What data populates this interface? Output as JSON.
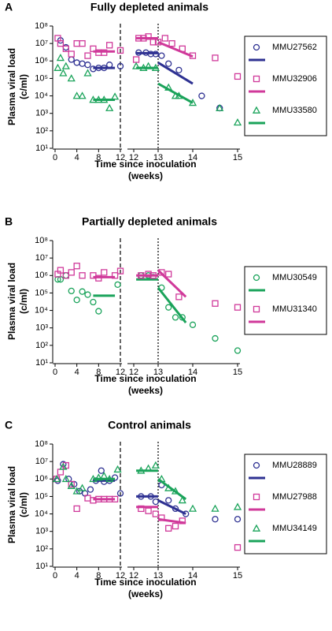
{
  "chart_data": [
    {
      "type": "scatter",
      "panel_label": "A",
      "title": "Fully depleted animals",
      "ylabel": [
        "Plasma viral load",
        "(c/ml)"
      ],
      "xlabel": [
        "Time since inoculation",
        "(weeks)"
      ],
      "log_scale": true,
      "ylim": [
        10,
        100000000
      ],
      "yticks": [
        {
          "value": 10,
          "label": "10¹"
        },
        {
          "value": 100,
          "label": "10²"
        },
        {
          "value": 1000,
          "label": "10³"
        },
        {
          "value": 10000,
          "label": "10⁴"
        },
        {
          "value": 100000,
          "label": "10⁵"
        },
        {
          "value": 1000000,
          "label": "10⁶"
        },
        {
          "value": 10000000,
          "label": "10⁷"
        },
        {
          "value": 100000000,
          "label": "10⁸"
        }
      ],
      "xlim": [
        0,
        12
      ],
      "xticks": [
        0,
        4,
        8,
        12
      ],
      "x2lim": [
        12,
        15
      ],
      "x2ticks": [
        12,
        13,
        14,
        15
      ],
      "vlines": [
        {
          "x": 12,
          "axis": "x",
          "style": "dashed"
        },
        {
          "x": 13,
          "axis": "x2",
          "style": "dotted"
        }
      ],
      "series": [
        {
          "name": "MMU27562",
          "color": "#2e3192",
          "marker": "circle",
          "x": [
            1,
            2,
            3,
            4,
            5,
            6,
            7,
            8,
            9,
            10,
            12,
            12.2,
            12.5,
            12.7,
            12.9,
            13.1,
            13.3,
            13.6,
            14.2,
            14.6
          ],
          "values": [
            15000000,
            6000000,
            1200000,
            800000,
            700000,
            600000,
            350000,
            400000,
            400000,
            600000,
            500000,
            3000000,
            3000000,
            2500000,
            2500000,
            2000000,
            700000,
            300000,
            10000,
            2000
          ],
          "fits": [
            {
              "x": [
                7,
                11
              ],
              "values": [
                400000,
                400000
              ]
            },
            {
              "x": [
                12.1,
                13
              ],
              "values": [
                2800000,
                2800000
              ]
            },
            {
              "x": [
                13,
                14
              ],
              "values": [
                800000,
                50000
              ]
            }
          ]
        },
        {
          "name": "MMU32906",
          "color": "#d0399a",
          "marker": "square",
          "x": [
            0.5,
            1,
            2,
            3,
            4,
            5,
            6,
            7,
            8,
            9,
            10,
            12,
            12.1,
            12.2,
            12.4,
            12.6,
            12.8,
            13,
            13.2,
            13.4,
            13.7,
            14,
            14.5,
            15
          ],
          "values": [
            20000000,
            10000000,
            5000000,
            2500000,
            10000000,
            10000000,
            2000000,
            5000000,
            3000000,
            3000000,
            8000000,
            4000000,
            1200000,
            20000000,
            20000000,
            25000000,
            12000000,
            12000000,
            20000000,
            10000000,
            5000000,
            2000000,
            1500000,
            130000
          ],
          "fits": [
            {
              "x": [
                7,
                11
              ],
              "values": [
                3500000,
                3500000
              ]
            },
            {
              "x": [
                12.1,
                13
              ],
              "values": [
                20000000,
                20000000
              ]
            },
            {
              "x": [
                13,
                14
              ],
              "values": [
                12000000,
                1800000
              ]
            }
          ]
        },
        {
          "name": "MMU33580",
          "color": "#1aa35a",
          "marker": "triangle",
          "x": [
            0.5,
            1,
            1.5,
            2,
            3,
            4,
            5,
            6,
            7,
            8,
            9,
            10,
            11,
            12.1,
            12.4,
            12.6,
            12.9,
            13.3,
            13.5,
            13.6,
            14,
            14.6,
            15
          ],
          "values": [
            400000,
            1500000,
            200000,
            500000,
            100000,
            10000,
            10000,
            200000,
            6000,
            6000,
            6000,
            2000,
            9000,
            500000,
            400000,
            500000,
            400000,
            30000,
            10000,
            10000,
            4000,
            2000,
            300
          ],
          "fits": [
            {
              "x": [
                7,
                11
              ],
              "values": [
                6000,
                6000
              ]
            },
            {
              "x": [
                12.1,
                13
              ],
              "values": [
                400000,
                400000
              ]
            },
            {
              "x": [
                13,
                14
              ],
              "values": [
                50000,
                4000
              ]
            }
          ]
        }
      ]
    },
    {
      "type": "scatter",
      "panel_label": "B",
      "title": "Partially depleted animals",
      "ylabel": [
        "Plasma viral load",
        "(c/ml)"
      ],
      "xlabel": [
        "Time since inoculation",
        "(weeks)"
      ],
      "log_scale": true,
      "ylim": [
        10,
        100000000
      ],
      "yticks": [
        {
          "value": 10,
          "label": "10¹"
        },
        {
          "value": 100,
          "label": "10²"
        },
        {
          "value": 1000,
          "label": "10³"
        },
        {
          "value": 10000,
          "label": "10⁴"
        },
        {
          "value": 100000,
          "label": "10⁵"
        },
        {
          "value": 1000000,
          "label": "10⁶"
        },
        {
          "value": 10000000,
          "label": "10⁷"
        },
        {
          "value": 100000000,
          "label": "10⁸"
        }
      ],
      "xlim": [
        0,
        12
      ],
      "xticks": [
        0,
        4,
        8,
        12
      ],
      "x2lim": [
        12,
        15
      ],
      "x2ticks": [
        12,
        13,
        14,
        15
      ],
      "vlines": [
        {
          "x": 12,
          "axis": "x",
          "style": "dashed"
        },
        {
          "x": 13,
          "axis": "x2",
          "style": "dotted"
        }
      ],
      "series": [
        {
          "name": "MMU30549",
          "color": "#1aa35a",
          "marker": "circle",
          "x": [
            0.5,
            1,
            2,
            3,
            4,
            5,
            6,
            7,
            8,
            11.5,
            12.3,
            12.6,
            12.8,
            13.1,
            13.3,
            13.5,
            13.7,
            14,
            14.5,
            15
          ],
          "values": [
            600000,
            600000,
            1000000,
            130000,
            40000,
            120000,
            80000,
            30000,
            9000,
            300000,
            1000000,
            1000000,
            800000,
            200000,
            15000,
            4000,
            4000,
            1500,
            250,
            50
          ],
          "fits": [
            {
              "x": [
                7,
                11
              ],
              "values": [
                70000,
                70000
              ]
            },
            {
              "x": [
                12.1,
                13
              ],
              "values": [
                600000,
                600000
              ]
            },
            {
              "x": [
                13,
                13.8
              ],
              "values": [
                200000,
                2000
              ]
            }
          ]
        },
        {
          "name": "MMU31340",
          "color": "#d0399a",
          "marker": "square",
          "x": [
            0.5,
            1,
            2,
            3,
            4,
            5,
            7,
            8,
            9,
            11,
            12,
            12.3,
            12.6,
            12.8,
            13.1,
            13.3,
            13.6,
            14.5,
            15
          ],
          "values": [
            1200000,
            2000000,
            1000000,
            1500000,
            3500000,
            1000000,
            1000000,
            700000,
            1500000,
            1000000,
            1800000,
            1000000,
            1200000,
            1000000,
            1500000,
            1200000,
            60000,
            25000,
            15000
          ],
          "fits": [
            {
              "x": [
                7,
                11
              ],
              "values": [
                800000,
                800000
              ]
            },
            {
              "x": [
                12.1,
                13
              ],
              "values": [
                1000000,
                1000000
              ]
            },
            {
              "x": [
                13,
                13.8
              ],
              "values": [
                2000000,
                60000
              ]
            }
          ]
        }
      ]
    },
    {
      "type": "scatter",
      "panel_label": "C",
      "title": "Control animals",
      "ylabel": [
        "Plasma viral load",
        "(c/ml)"
      ],
      "xlabel": [
        "Time since inoculation",
        "(weeks)"
      ],
      "log_scale": true,
      "ylim": [
        10,
        100000000
      ],
      "yticks": [
        {
          "value": 10,
          "label": "10¹"
        },
        {
          "value": 100,
          "label": "10²"
        },
        {
          "value": 1000,
          "label": "10³"
        },
        {
          "value": 10000,
          "label": "10⁴"
        },
        {
          "value": 100000,
          "label": "10⁵"
        },
        {
          "value": 1000000,
          "label": "10⁶"
        },
        {
          "value": 10000000,
          "label": "10⁷"
        },
        {
          "value": 100000000,
          "label": "10⁸"
        }
      ],
      "xlim": [
        0,
        12
      ],
      "xticks": [
        0,
        4,
        8,
        12
      ],
      "x2lim": [
        12,
        15
      ],
      "x2ticks": [
        12,
        13,
        14,
        15
      ],
      "vlines": [
        {
          "x": 12,
          "axis": "x",
          "style": "dashed"
        },
        {
          "x": 13,
          "axis": "x2",
          "style": "dotted"
        }
      ],
      "series": [
        {
          "name": "MMU28889",
          "color": "#2e3192",
          "marker": "circle",
          "x": [
            0.5,
            1.5,
            2.5,
            3.5,
            4.5,
            5.5,
            6.5,
            7.5,
            8.5,
            9,
            10,
            11,
            12,
            12.3,
            12.7,
            12.9,
            13.1,
            13.3,
            13.5,
            13.8,
            14.5,
            15
          ],
          "values": [
            800000,
            7000000,
            1000000,
            500000,
            200000,
            150000,
            250000,
            800000,
            3000000,
            700000,
            800000,
            1200000,
            150000,
            100000,
            100000,
            50000,
            450000,
            60000,
            20000,
            10000,
            5000,
            5000
          ],
          "fits": [
            {
              "x": [
                7,
                11
              ],
              "values": [
                800000,
                800000
              ]
            },
            {
              "x": [
                12.1,
                13
              ],
              "values": [
                100000,
                100000
              ]
            },
            {
              "x": [
                13,
                13.8
              ],
              "values": [
                60000,
                10000
              ]
            }
          ]
        },
        {
          "name": "MMU27988",
          "color": "#d0399a",
          "marker": "square",
          "x": [
            0.3,
            1,
            2,
            3,
            4,
            6,
            7,
            8,
            9,
            10,
            11,
            12.3,
            12.6,
            12.9,
            13.1,
            13.3,
            13.5,
            13.7,
            15
          ],
          "values": [
            1000000,
            2500000,
            6000000,
            500000,
            20000,
            80000,
            60000,
            70000,
            70000,
            70000,
            70000,
            20000,
            15000,
            10000,
            6000,
            1500,
            2000,
            4000,
            120
          ],
          "fits": [
            {
              "x": [
                7,
                11
              ],
              "values": [
                70000,
                70000
              ]
            },
            {
              "x": [
                12.1,
                13
              ],
              "values": [
                25000,
                25000
              ]
            },
            {
              "x": [
                13,
                13.8
              ],
              "values": [
                5000,
                3000
              ]
            }
          ]
        },
        {
          "name": "MMU34149",
          "color": "#1aa35a",
          "marker": "triangle",
          "x": [
            0.3,
            1.5,
            2,
            3,
            4,
            5,
            7,
            8,
            9,
            10,
            11.5,
            12.3,
            12.6,
            12.9,
            13.1,
            13.3,
            13.5,
            13.7,
            14,
            14.5,
            15
          ],
          "values": [
            1000000,
            5000000,
            1000000,
            400000,
            200000,
            300000,
            1000000,
            1200000,
            1500000,
            1000000,
            3500000,
            3000000,
            4000000,
            6000000,
            1000000,
            300000,
            200000,
            60000,
            20000,
            20000,
            25000
          ],
          "fits": [
            {
              "x": [
                7,
                11
              ],
              "values": [
                1000000,
                1000000
              ]
            },
            {
              "x": [
                12.1,
                13
              ],
              "values": [
                3000000,
                3000000
              ]
            },
            {
              "x": [
                13,
                13.8
              ],
              "values": [
                1000000,
                70000
              ]
            }
          ]
        }
      ]
    }
  ]
}
